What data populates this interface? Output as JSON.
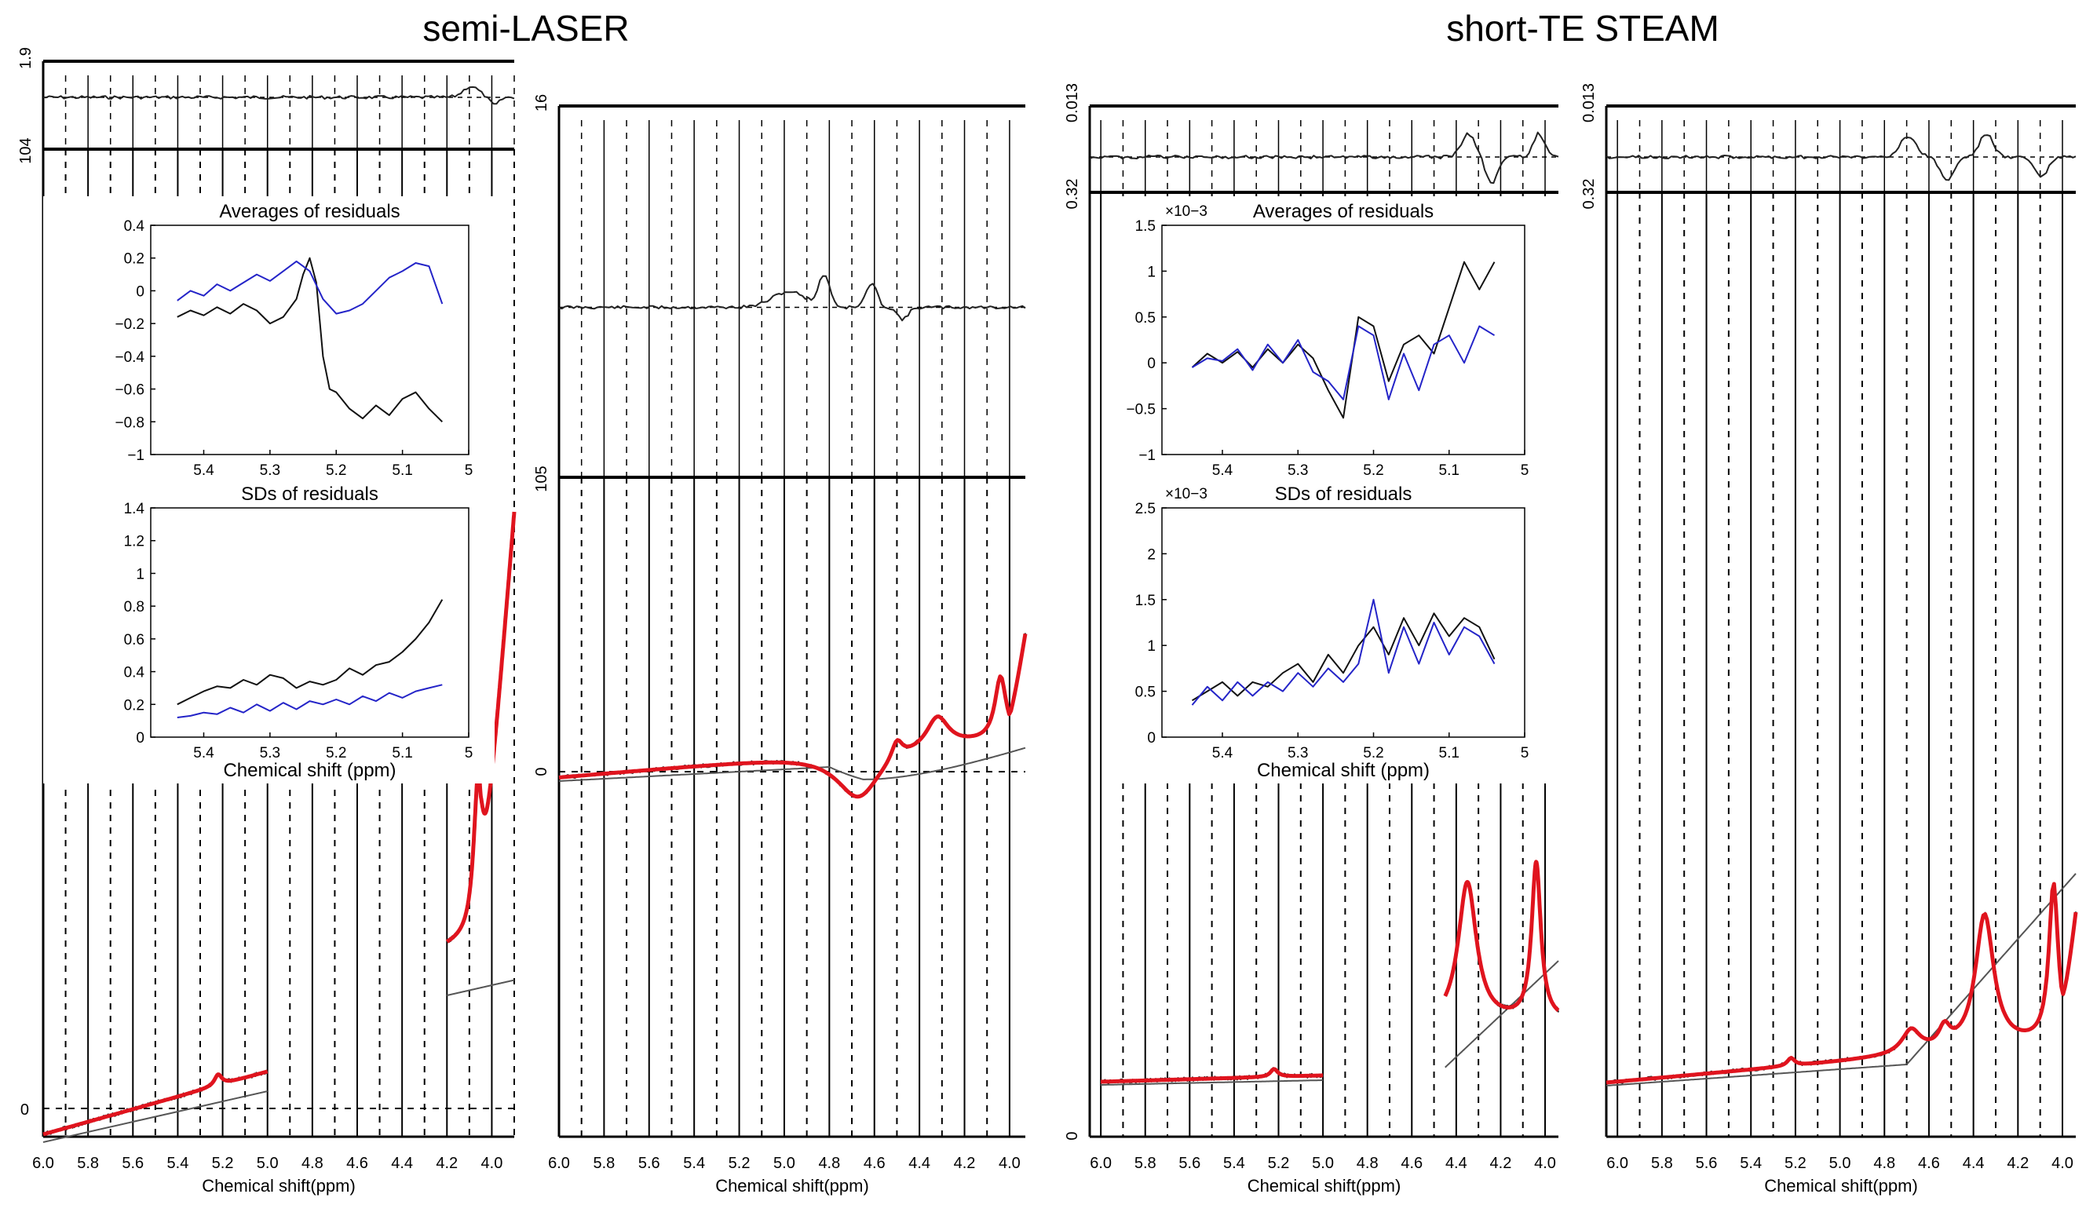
{
  "chart_data": {
    "type": "line",
    "titles": {
      "left": "semi-LASER",
      "right": "short-TE STEAM"
    },
    "colors": {
      "fit": "#e0141e",
      "data": "#222222",
      "baseline": "#555555",
      "series1": "#111111",
      "series2": "#2424c8"
    },
    "xlabel": "Chemical shift(ppm)",
    "inset_xlabel": "Chemical shift (ppm)",
    "x_ticks": [
      "6.0",
      "5.8",
      "5.6",
      "5.4",
      "5.2",
      "5.0",
      "4.8",
      "4.6",
      "4.4",
      "4.2",
      "4.0"
    ],
    "inset_x_ticks": [
      "5.4",
      "5.3",
      "5.2",
      "5.1",
      "5"
    ],
    "panels": [
      {
        "id": "semi-laser-left",
        "y_labels": {
          "residual_top": "1.9",
          "residual_bottom": "104",
          "spectrum_zero": "0"
        },
        "insets": [
          {
            "title": "Averages of residuals",
            "y_ticks": [
              "0.4",
              "0.2",
              "0",
              "−0.2",
              "−0.4",
              "−0.6",
              "−0.8",
              "−1"
            ],
            "ylim": [
              -1,
              0.4
            ],
            "xlim": [
              5.48,
              5.0
            ],
            "series": [
              {
                "name": "black",
                "x": [
                  5.44,
                  5.42,
                  5.4,
                  5.38,
                  5.36,
                  5.34,
                  5.32,
                  5.3,
                  5.28,
                  5.26,
                  5.25,
                  5.24,
                  5.23,
                  5.22,
                  5.21,
                  5.2,
                  5.18,
                  5.16,
                  5.14,
                  5.12,
                  5.1,
                  5.08,
                  5.06,
                  5.04
                ],
                "values": [
                  -0.16,
                  -0.12,
                  -0.15,
                  -0.1,
                  -0.14,
                  -0.08,
                  -0.12,
                  -0.2,
                  -0.16,
                  -0.05,
                  0.1,
                  0.2,
                  0.05,
                  -0.4,
                  -0.6,
                  -0.62,
                  -0.72,
                  -0.78,
                  -0.7,
                  -0.76,
                  -0.66,
                  -0.62,
                  -0.72,
                  -0.8
                ]
              },
              {
                "name": "blue",
                "x": [
                  5.44,
                  5.42,
                  5.4,
                  5.38,
                  5.36,
                  5.34,
                  5.32,
                  5.3,
                  5.28,
                  5.26,
                  5.24,
                  5.22,
                  5.2,
                  5.18,
                  5.16,
                  5.14,
                  5.12,
                  5.1,
                  5.08,
                  5.06,
                  5.04
                ],
                "values": [
                  -0.06,
                  0.0,
                  -0.03,
                  0.04,
                  0.0,
                  0.05,
                  0.1,
                  0.06,
                  0.12,
                  0.18,
                  0.12,
                  -0.05,
                  -0.14,
                  -0.12,
                  -0.08,
                  0.0,
                  0.08,
                  0.12,
                  0.17,
                  0.15,
                  -0.08
                ]
              }
            ]
          },
          {
            "title": "SDs of residuals",
            "y_ticks": [
              "1.4",
              "1.2",
              "1",
              "0.8",
              "0.6",
              "0.4",
              "0.2",
              "0"
            ],
            "ylim": [
              0,
              1.4
            ],
            "xlim": [
              5.48,
              5.0
            ],
            "series": [
              {
                "name": "black",
                "x": [
                  5.44,
                  5.42,
                  5.4,
                  5.38,
                  5.36,
                  5.34,
                  5.32,
                  5.3,
                  5.28,
                  5.26,
                  5.24,
                  5.22,
                  5.2,
                  5.18,
                  5.16,
                  5.14,
                  5.12,
                  5.1,
                  5.08,
                  5.06,
                  5.04
                ],
                "values": [
                  0.2,
                  0.24,
                  0.28,
                  0.31,
                  0.3,
                  0.35,
                  0.32,
                  0.38,
                  0.36,
                  0.3,
                  0.34,
                  0.32,
                  0.35,
                  0.42,
                  0.38,
                  0.44,
                  0.46,
                  0.52,
                  0.6,
                  0.7,
                  0.84
                ]
              },
              {
                "name": "blue",
                "x": [
                  5.44,
                  5.42,
                  5.4,
                  5.38,
                  5.36,
                  5.34,
                  5.32,
                  5.3,
                  5.28,
                  5.26,
                  5.24,
                  5.22,
                  5.2,
                  5.18,
                  5.16,
                  5.14,
                  5.12,
                  5.1,
                  5.08,
                  5.06,
                  5.04
                ],
                "values": [
                  0.12,
                  0.13,
                  0.15,
                  0.14,
                  0.18,
                  0.15,
                  0.2,
                  0.16,
                  0.21,
                  0.17,
                  0.22,
                  0.2,
                  0.23,
                  0.2,
                  0.25,
                  0.22,
                  0.27,
                  0.24,
                  0.28,
                  0.3,
                  0.32
                ]
              }
            ]
          }
        ]
      },
      {
        "id": "semi-laser-right",
        "y_labels": {
          "residual_top": "16",
          "residual_bottom": "105",
          "spectrum_zero": "0"
        },
        "peaks_ppm": [
          4.7,
          4.5,
          4.3,
          4.05
        ]
      },
      {
        "id": "steam-left",
        "y_labels": {
          "residual_top": "0.013",
          "residual_bottom": "0.32",
          "spectrum_zero": "0"
        },
        "insets": [
          {
            "title": "Averages of residuals",
            "exponent": "×10−3",
            "y_ticks": [
              "1.5",
              "1",
              "0.5",
              "0",
              "−0.5",
              "−1"
            ],
            "ylim": [
              -1,
              1.5
            ],
            "xlim": [
              5.48,
              5.0
            ],
            "series": [
              {
                "name": "black",
                "x": [
                  5.44,
                  5.42,
                  5.4,
                  5.38,
                  5.36,
                  5.34,
                  5.32,
                  5.3,
                  5.28,
                  5.26,
                  5.24,
                  5.22,
                  5.2,
                  5.18,
                  5.16,
                  5.14,
                  5.12,
                  5.1,
                  5.08,
                  5.06,
                  5.04
                ],
                "values": [
                  -0.05,
                  0.1,
                  0.0,
                  0.12,
                  -0.05,
                  0.15,
                  0.0,
                  0.2,
                  0.05,
                  -0.3,
                  -0.6,
                  0.5,
                  0.4,
                  -0.2,
                  0.2,
                  0.3,
                  0.1,
                  0.6,
                  1.1,
                  0.8,
                  1.1
                ]
              },
              {
                "name": "blue",
                "x": [
                  5.44,
                  5.42,
                  5.4,
                  5.38,
                  5.36,
                  5.34,
                  5.32,
                  5.3,
                  5.28,
                  5.26,
                  5.24,
                  5.22,
                  5.2,
                  5.18,
                  5.16,
                  5.14,
                  5.12,
                  5.1,
                  5.08,
                  5.06,
                  5.04
                ],
                "values": [
                  -0.05,
                  0.05,
                  0.02,
                  0.15,
                  -0.08,
                  0.2,
                  0.0,
                  0.25,
                  -0.1,
                  -0.2,
                  -0.4,
                  0.4,
                  0.3,
                  -0.4,
                  0.1,
                  -0.3,
                  0.2,
                  0.3,
                  0.0,
                  0.4,
                  0.3
                ]
              }
            ]
          },
          {
            "title": "SDs of residuals",
            "exponent": "×10−3",
            "y_ticks": [
              "2.5",
              "2",
              "1.5",
              "1",
              "0.5",
              "0"
            ],
            "ylim": [
              0,
              2.5
            ],
            "xlim": [
              5.48,
              5.0
            ],
            "series": [
              {
                "name": "black",
                "x": [
                  5.44,
                  5.42,
                  5.4,
                  5.38,
                  5.36,
                  5.34,
                  5.32,
                  5.3,
                  5.28,
                  5.26,
                  5.24,
                  5.22,
                  5.2,
                  5.18,
                  5.16,
                  5.14,
                  5.12,
                  5.1,
                  5.08,
                  5.06,
                  5.04
                ],
                "values": [
                  0.4,
                  0.5,
                  0.6,
                  0.45,
                  0.6,
                  0.55,
                  0.7,
                  0.8,
                  0.6,
                  0.9,
                  0.7,
                  1.0,
                  1.2,
                  0.9,
                  1.3,
                  1.0,
                  1.35,
                  1.1,
                  1.3,
                  1.2,
                  0.85
                ]
              },
              {
                "name": "blue",
                "x": [
                  5.44,
                  5.42,
                  5.4,
                  5.38,
                  5.36,
                  5.34,
                  5.32,
                  5.3,
                  5.28,
                  5.26,
                  5.24,
                  5.22,
                  5.2,
                  5.18,
                  5.16,
                  5.14,
                  5.12,
                  5.1,
                  5.08,
                  5.06,
                  5.04
                ],
                "values": [
                  0.35,
                  0.55,
                  0.4,
                  0.6,
                  0.45,
                  0.6,
                  0.5,
                  0.7,
                  0.55,
                  0.75,
                  0.6,
                  0.8,
                  1.5,
                  0.7,
                  1.2,
                  0.8,
                  1.25,
                  0.9,
                  1.2,
                  1.1,
                  0.8
                ]
              }
            ]
          }
        ]
      },
      {
        "id": "steam-right",
        "y_labels": {
          "residual_top": "0.013",
          "residual_bottom": "0.32",
          "spectrum_zero": ""
        },
        "peaks_ppm": [
          4.5,
          4.35,
          4.05
        ]
      }
    ]
  }
}
